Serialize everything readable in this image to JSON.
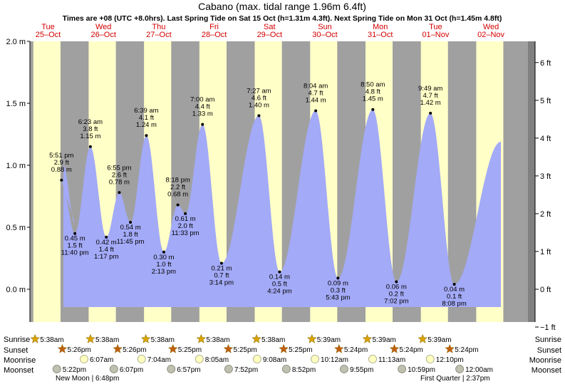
{
  "chart_data": {
    "type": "area",
    "title": "Cabano (max. tidal range 1.96m 6.4ft)",
    "subtitle": "Times are +08 (UTC +8.0hrs). Last Spring Tide on Sat 15 Oct (h=1.31m 4.3ft). Next Spring Tide on Mon 31 Oct (h=1.45m 4.8ft)",
    "days": [
      {
        "dow": "Tue",
        "date": "25–Oct"
      },
      {
        "dow": "Wed",
        "date": "26–Oct"
      },
      {
        "dow": "Thu",
        "date": "27–Oct"
      },
      {
        "dow": "Fri",
        "date": "28–Oct"
      },
      {
        "dow": "Sat",
        "date": "29–Oct"
      },
      {
        "dow": "Sun",
        "date": "30–Oct"
      },
      {
        "dow": "Mon",
        "date": "31–Oct"
      },
      {
        "dow": "Tue",
        "date": "01–Nov"
      },
      {
        "dow": "Wed",
        "date": "02–Nov"
      }
    ],
    "y_left": {
      "unit": "m",
      "ticks": [
        "2.0 m",
        "1.5 m",
        "1.0 m",
        "0.5 m",
        "0.0 m"
      ],
      "values": [
        2.0,
        1.5,
        1.0,
        0.5,
        0.0
      ],
      "ylim": [
        -0.18,
        2.0
      ]
    },
    "y_right": {
      "unit": "ft",
      "ticks": [
        "6 ft",
        "5 ft",
        "4 ft",
        "3 ft",
        "2 ft",
        "1 ft",
        "0 ft",
        "−1 ft"
      ],
      "values": [
        6,
        5,
        4,
        3,
        2,
        1,
        0,
        -1
      ]
    },
    "extrema": [
      {
        "time": "5:51 pm",
        "ft": "2.9 ft",
        "m": "0.88 m",
        "h": 0.88,
        "t": "2022-10-25 17:51",
        "type": "high"
      },
      {
        "time": "11:40 pm",
        "ft": "1.5 ft",
        "m": "0.45 m",
        "h": 0.45,
        "t": "2022-10-25 23:40",
        "type": "low"
      },
      {
        "time": "6:23 am",
        "ft": "3.8 ft",
        "m": "1.15 m",
        "h": 1.15,
        "t": "2022-10-26 06:23",
        "type": "high"
      },
      {
        "time": "1:17 pm",
        "ft": "1.4 ft",
        "m": "0.42 m",
        "h": 0.42,
        "t": "2022-10-26 13:17",
        "type": "low"
      },
      {
        "time": "6:55 pm",
        "ft": "2.6 ft",
        "m": "0.78 m",
        "h": 0.78,
        "t": "2022-10-26 18:55",
        "type": "high"
      },
      {
        "time": "11:45 pm",
        "ft": "1.8 ft",
        "m": "0.54 m",
        "h": 0.54,
        "t": "2022-10-26 23:45",
        "type": "low"
      },
      {
        "time": "6:39 am",
        "ft": "4.1 ft",
        "m": "1.24 m",
        "h": 1.24,
        "t": "2022-10-27 06:39",
        "type": "high"
      },
      {
        "time": "2:13 pm",
        "ft": "1.0 ft",
        "m": "0.30 m",
        "h": 0.3,
        "t": "2022-10-27 14:13",
        "type": "low"
      },
      {
        "time": "8:18 pm",
        "ft": "2.2 ft",
        "m": "0.68 m",
        "h": 0.68,
        "t": "2022-10-27 20:18",
        "type": "high"
      },
      {
        "time": "11:33 pm",
        "ft": "2.0 ft",
        "m": "0.61 m",
        "h": 0.61,
        "t": "2022-10-27 23:33",
        "type": "low"
      },
      {
        "time": "7:00 am",
        "ft": "4.4 ft",
        "m": "1.33 m",
        "h": 1.33,
        "t": "2022-10-28 07:00",
        "type": "high"
      },
      {
        "time": "3:14 pm",
        "ft": "0.7 ft",
        "m": "0.21 m",
        "h": 0.21,
        "t": "2022-10-28 15:14",
        "type": "low"
      },
      {
        "time": "7:27 am",
        "ft": "4.6 ft",
        "m": "1.40 m",
        "h": 1.4,
        "t": "2022-10-29 07:27",
        "type": "high"
      },
      {
        "time": "4:24 pm",
        "ft": "0.5 ft",
        "m": "0.14 m",
        "h": 0.14,
        "t": "2022-10-29 16:24",
        "type": "low"
      },
      {
        "time": "8:04 am",
        "ft": "4.7 ft",
        "m": "1.44 m",
        "h": 1.44,
        "t": "2022-10-30 08:04",
        "type": "high"
      },
      {
        "time": "5:43 pm",
        "ft": "0.3 ft",
        "m": "0.09 m",
        "h": 0.09,
        "t": "2022-10-30 17:43",
        "type": "low"
      },
      {
        "time": "8:50 am",
        "ft": "4.8 ft",
        "m": "1.45 m",
        "h": 1.45,
        "t": "2022-10-31 08:50",
        "type": "high"
      },
      {
        "time": "7:02 pm",
        "ft": "0.2 ft",
        "m": "0.06 m",
        "h": 0.06,
        "t": "2022-10-31 19:02",
        "type": "low"
      },
      {
        "time": "9:49 am",
        "ft": "4.7 ft",
        "m": "1.42 m",
        "h": 1.42,
        "t": "2022-11-01 09:49",
        "type": "high"
      },
      {
        "time": "8:08 pm",
        "ft": "0.1 ft",
        "m": "0.04 m",
        "h": 0.04,
        "t": "2022-11-01 20:08",
        "type": "low"
      }
    ],
    "sun": {
      "sunrise": [
        "5:38am",
        "5:38am",
        "5:38am",
        "5:38am",
        "5:38am",
        "5:39am",
        "5:39am",
        "5:39am"
      ],
      "sunset": [
        "5:26pm",
        "5:26pm",
        "5:25pm",
        "5:25pm",
        "5:25pm",
        "5:24pm",
        "5:24pm",
        "5:24pm"
      ]
    },
    "moon": {
      "moonrise": [
        "6:07am",
        "7:04am",
        "8:05am",
        "9:08am",
        "10:12am",
        "11:13am",
        "12:10pm"
      ],
      "moonset": [
        "5:22pm",
        "6:07pm",
        "6:57pm",
        "7:52pm",
        "8:52pm",
        "9:55pm",
        "10:59pm",
        "12:00am"
      ]
    },
    "phases": [
      {
        "label": "New Moon | 6:48pm"
      },
      {
        "label": "First Quarter | 2:37pm"
      }
    ],
    "row_labels": {
      "sunrise": "Sunrise",
      "sunset": "Sunset",
      "moonrise": "Moonrise",
      "moonset": "Moonset"
    },
    "colors": {
      "day": "#ffffc8",
      "night": "#a0a0a0",
      "tide": "#a3aaf7",
      "day_label": "#d40000",
      "sun_icon": "#d9a400",
      "sunset_icon": "#c06010",
      "moonrise_fill": "#ffffc0",
      "moonset_fill": "#c0c0b0"
    }
  }
}
